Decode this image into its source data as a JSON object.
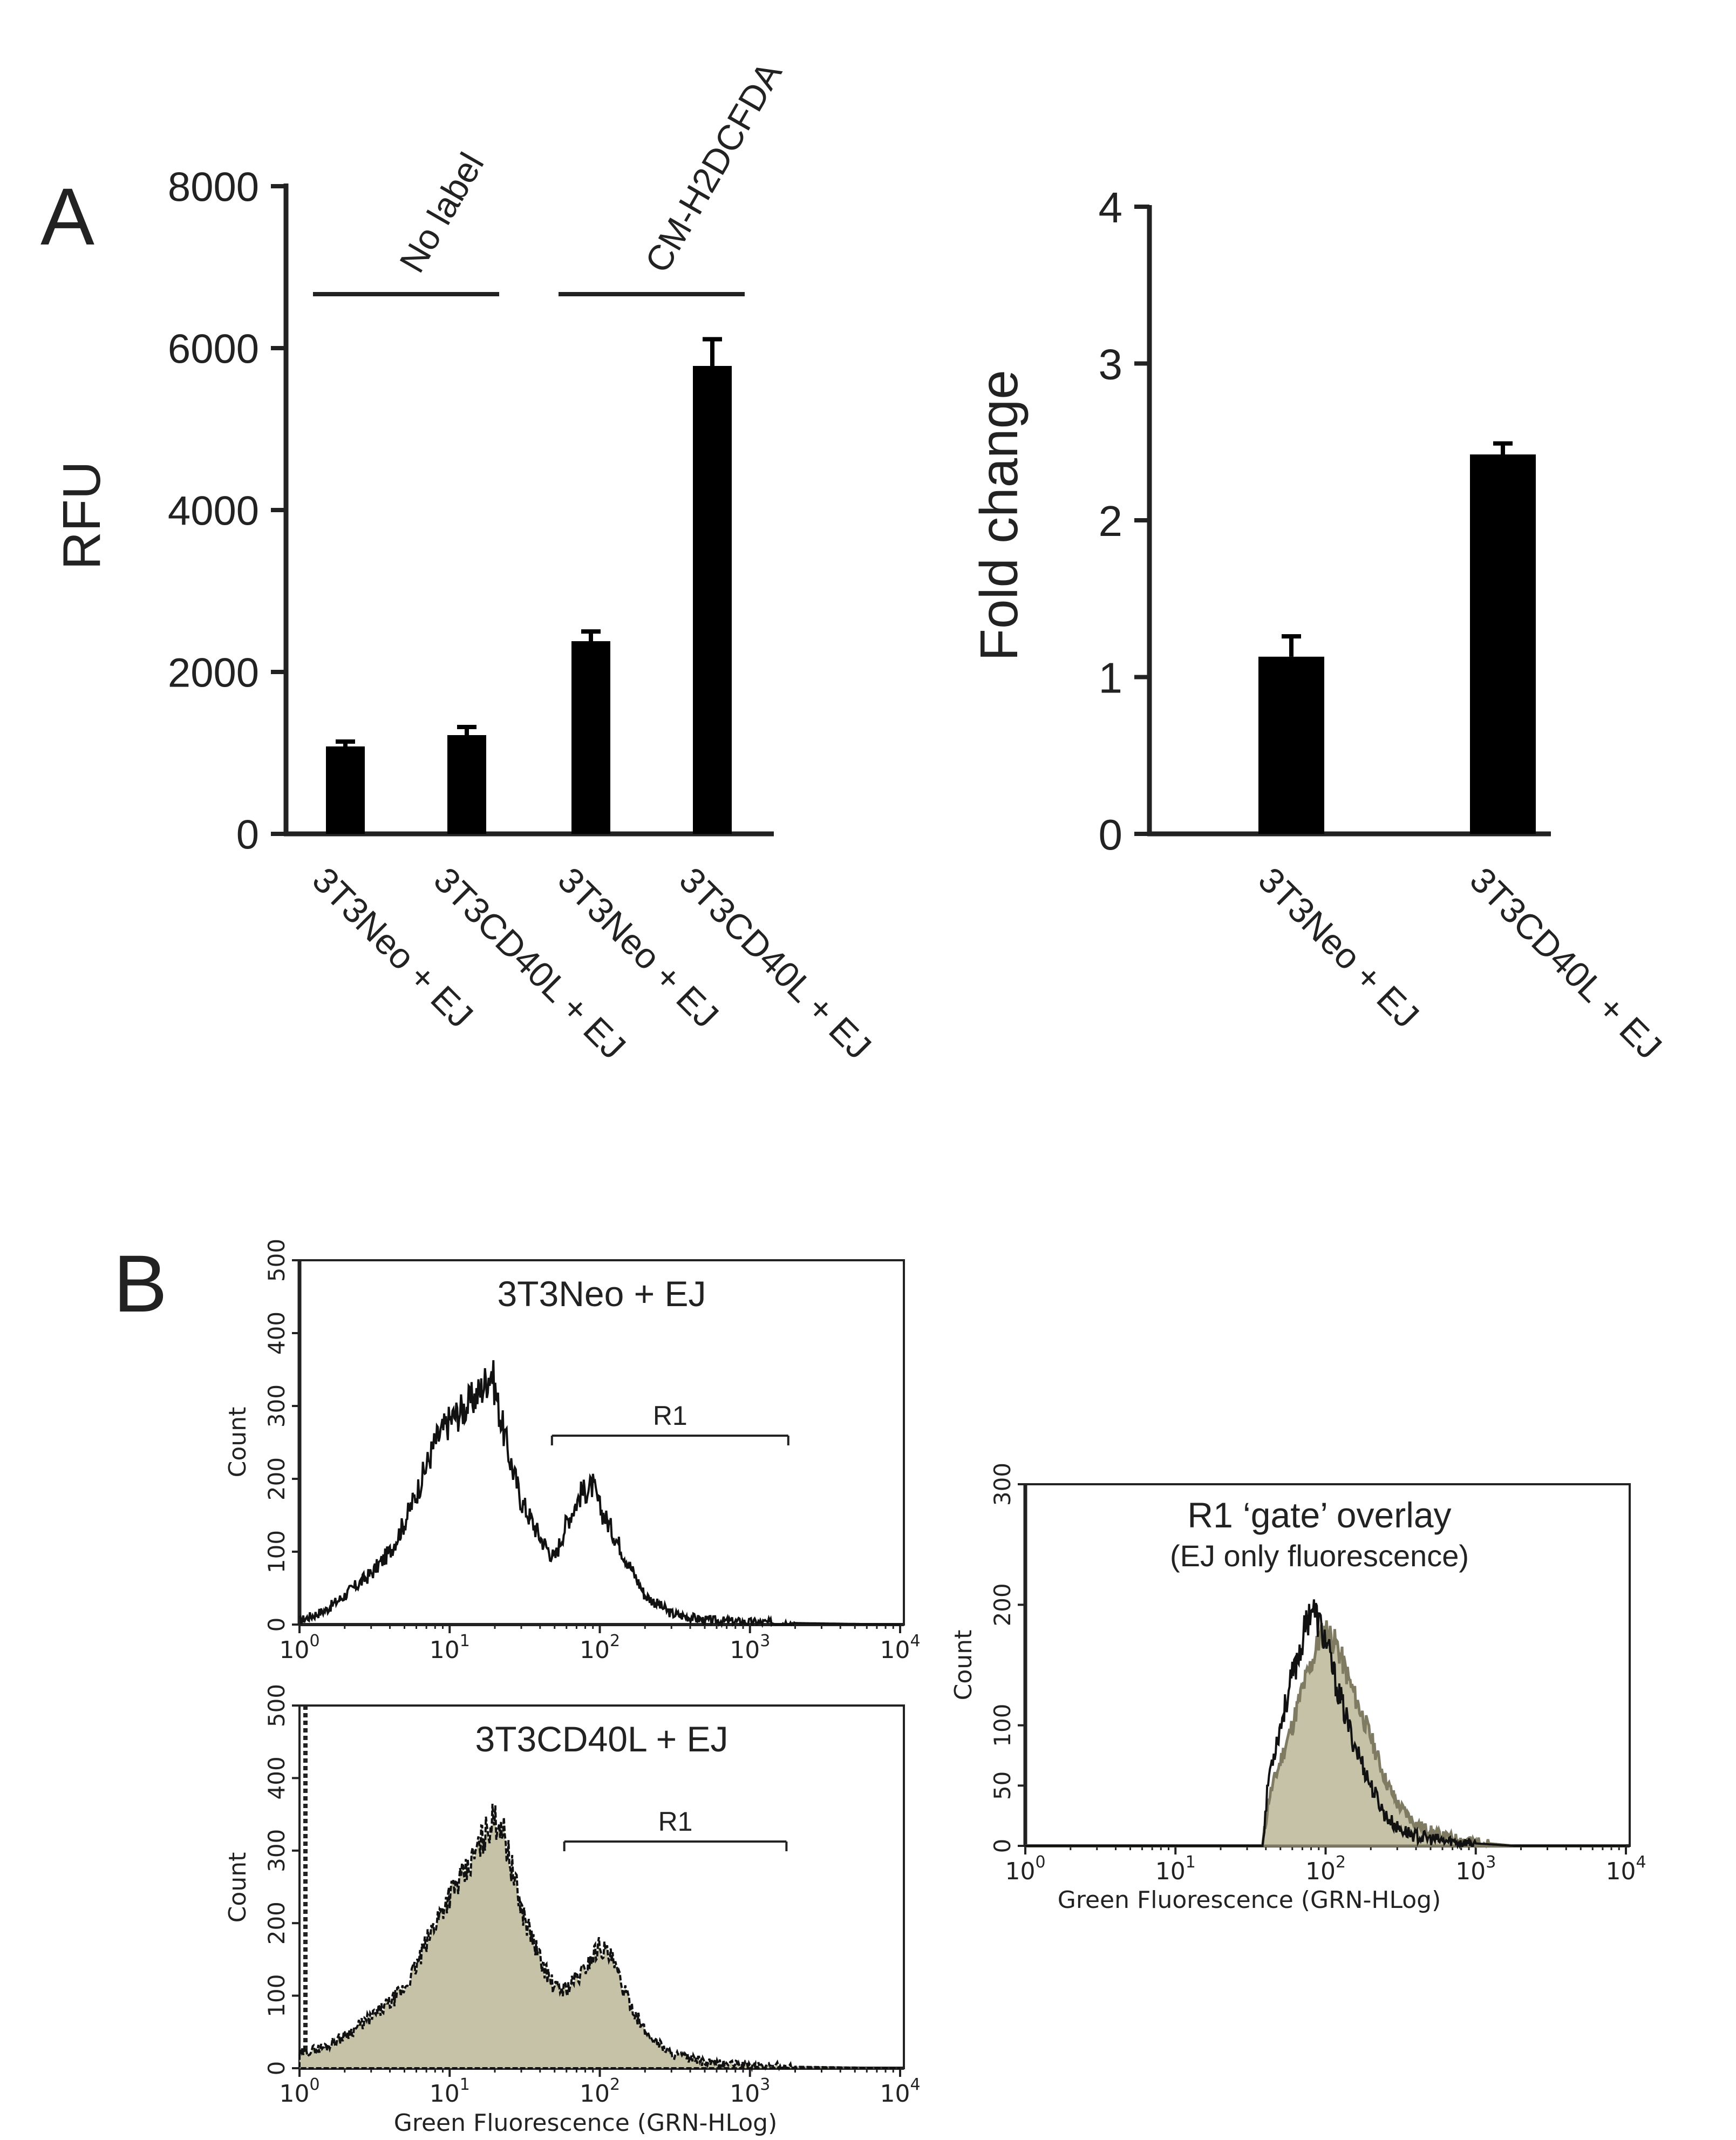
{
  "panel_labels": {
    "a": "A",
    "b": "B"
  },
  "chart_data": [
    {
      "type": "bar",
      "ylabel": "RFU",
      "ylim": [
        0,
        8000
      ],
      "yticks": [
        "0",
        "2000",
        "4000",
        "6000",
        "8000"
      ],
      "categories": [
        "3T3Neo + EJ",
        "3T3CD40L + EJ",
        "3T3Neo + EJ",
        "3T3CD40L + EJ"
      ],
      "values": [
        1080,
        1220,
        2380,
        5780
      ],
      "errors": [
        60,
        100,
        120,
        330
      ],
      "groups": [
        {
          "label": "No label",
          "from": 0,
          "to": 1
        },
        {
          "label": "CM-H2DCFDA",
          "from": 2,
          "to": 3
        }
      ]
    },
    {
      "type": "bar",
      "ylabel": "Fold change",
      "ylim": [
        0,
        4
      ],
      "yticks": [
        "0",
        "1",
        "2",
        "3",
        "4"
      ],
      "categories": [
        "3T3Neo + EJ",
        "3T3CD40L + EJ"
      ],
      "values": [
        1.13,
        2.42
      ],
      "errors": [
        0.13,
        0.07
      ]
    },
    {
      "type": "area",
      "title": "3T3Neo + EJ",
      "ylabel": "Count",
      "xscale": "log",
      "xlim": [
        1,
        10000
      ],
      "ylim": [
        0,
        500
      ],
      "yticks": [
        "0",
        "100",
        "200",
        "300",
        "400",
        "500"
      ],
      "filled": false,
      "gate": {
        "label": "R1",
        "x": [
          48,
          1800
        ]
      },
      "x": [
        1,
        1.5,
        2,
        3,
        4,
        5,
        6,
        8,
        10,
        13,
        16,
        19,
        21,
        25,
        30,
        40,
        50,
        60,
        75,
        90,
        100,
        120,
        150,
        200,
        300,
        500,
        1000,
        2000,
        10000
      ],
      "y": [
        5,
        20,
        40,
        70,
        100,
        140,
        180,
        250,
        280,
        300,
        320,
        350,
        300,
        230,
        170,
        120,
        90,
        140,
        180,
        190,
        160,
        130,
        90,
        40,
        15,
        6,
        3,
        2,
        0
      ]
    },
    {
      "type": "area",
      "title": "3T3CD40L + EJ",
      "ylabel": "Count",
      "xlabel": "Green Fluorescence (GRN-HLog)",
      "xscale": "log",
      "xlim": [
        1,
        10000
      ],
      "ylim": [
        0,
        500
      ],
      "yticks": [
        "0",
        "100",
        "200",
        "300",
        "400",
        "500"
      ],
      "filled": true,
      "gate": {
        "label": "R1",
        "x": [
          58,
          1750
        ]
      },
      "x": [
        1,
        1.5,
        2,
        3,
        4,
        5,
        6,
        8,
        10,
        13,
        16,
        19,
        22,
        25,
        30,
        40,
        50,
        60,
        75,
        100,
        120,
        150,
        200,
        300,
        500,
        1000,
        2000,
        10000
      ],
      "y": [
        20,
        30,
        45,
        70,
        90,
        110,
        140,
        200,
        240,
        270,
        310,
        340,
        340,
        290,
        220,
        150,
        110,
        110,
        130,
        170,
        150,
        100,
        50,
        20,
        8,
        4,
        2,
        0
      ]
    },
    {
      "type": "area",
      "title": "R1 ‘gate’ overlay",
      "subtitle": "(EJ only fluorescence)",
      "ylabel": "Count",
      "xlabel": "Green Fluorescence (GRN-HLog)",
      "xscale": "log",
      "xlim": [
        1,
        10000
      ],
      "ylim": [
        0,
        300
      ],
      "yticks": [
        "0",
        "50",
        "100",
        "200",
        "300"
      ],
      "x": [
        1,
        30,
        38,
        42,
        50,
        60,
        70,
        80,
        90,
        100,
        120,
        150,
        200,
        250,
        300,
        400,
        600,
        1000,
        1800,
        10000
      ],
      "series": [
        {
          "kind": "outline",
          "y": [
            0,
            0,
            0,
            60,
            100,
            140,
            170,
            200,
            185,
            170,
            130,
            90,
            50,
            25,
            15,
            8,
            4,
            2,
            0,
            0
          ]
        },
        {
          "kind": "filled",
          "y": [
            0,
            0,
            0,
            40,
            70,
            100,
            130,
            150,
            170,
            180,
            165,
            130,
            90,
            55,
            35,
            18,
            8,
            3,
            0,
            0
          ]
        }
      ]
    }
  ]
}
